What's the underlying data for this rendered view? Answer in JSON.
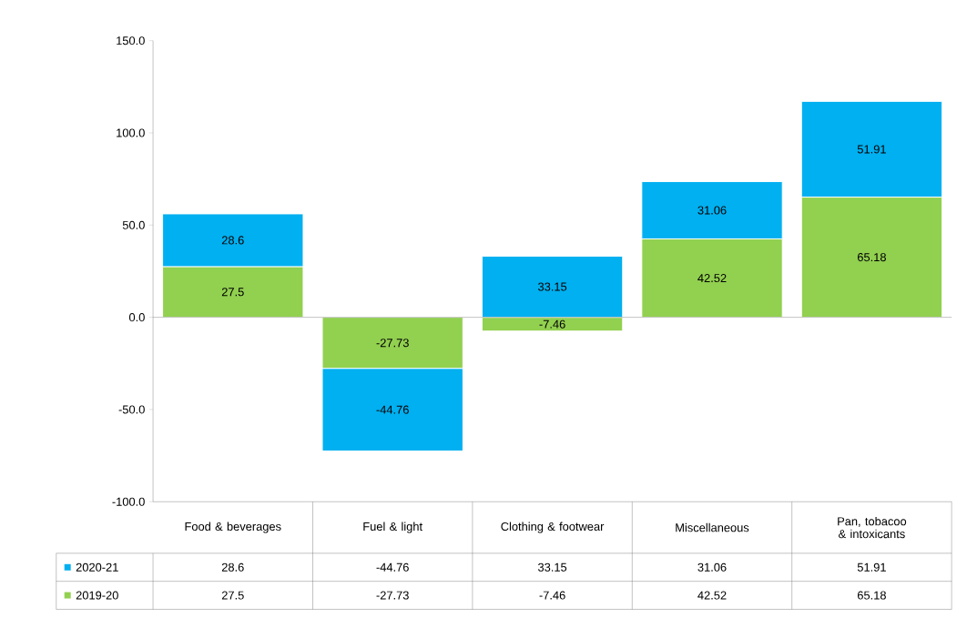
{
  "chart_data": {
    "type": "bar",
    "stacked": true,
    "legend": "bottom",
    "categories": [
      "Food & beverages",
      "Fuel & light",
      "Clothing & footwear",
      "Miscellaneous",
      "Pan, tobacoo & intoxicants"
    ],
    "series": [
      {
        "name": "2019-20",
        "color": "#92d050",
        "values": [
          27.5,
          -27.73,
          -7.46,
          42.52,
          65.18
        ],
        "value_labels": [
          "27.5",
          "-27.73",
          "-7.46",
          "42.52",
          "65.18"
        ]
      },
      {
        "name": "2020-21",
        "color": "#00b0f0",
        "values": [
          28.6,
          -44.76,
          33.15,
          31.06,
          51.91
        ],
        "value_labels": [
          "28.6",
          "-44.76",
          "33.15",
          "31.06",
          "51.91"
        ]
      }
    ],
    "ylim": [
      -100,
      150
    ],
    "yticks": [
      {
        "value": -100,
        "label": "-100.0"
      },
      {
        "value": -50,
        "label": "-50.0"
      },
      {
        "value": 0,
        "label": "0.0"
      },
      {
        "value": 50,
        "label": "50.0"
      },
      {
        "value": 100,
        "label": "100.0"
      },
      {
        "value": 150,
        "label": "150.0"
      }
    ]
  }
}
